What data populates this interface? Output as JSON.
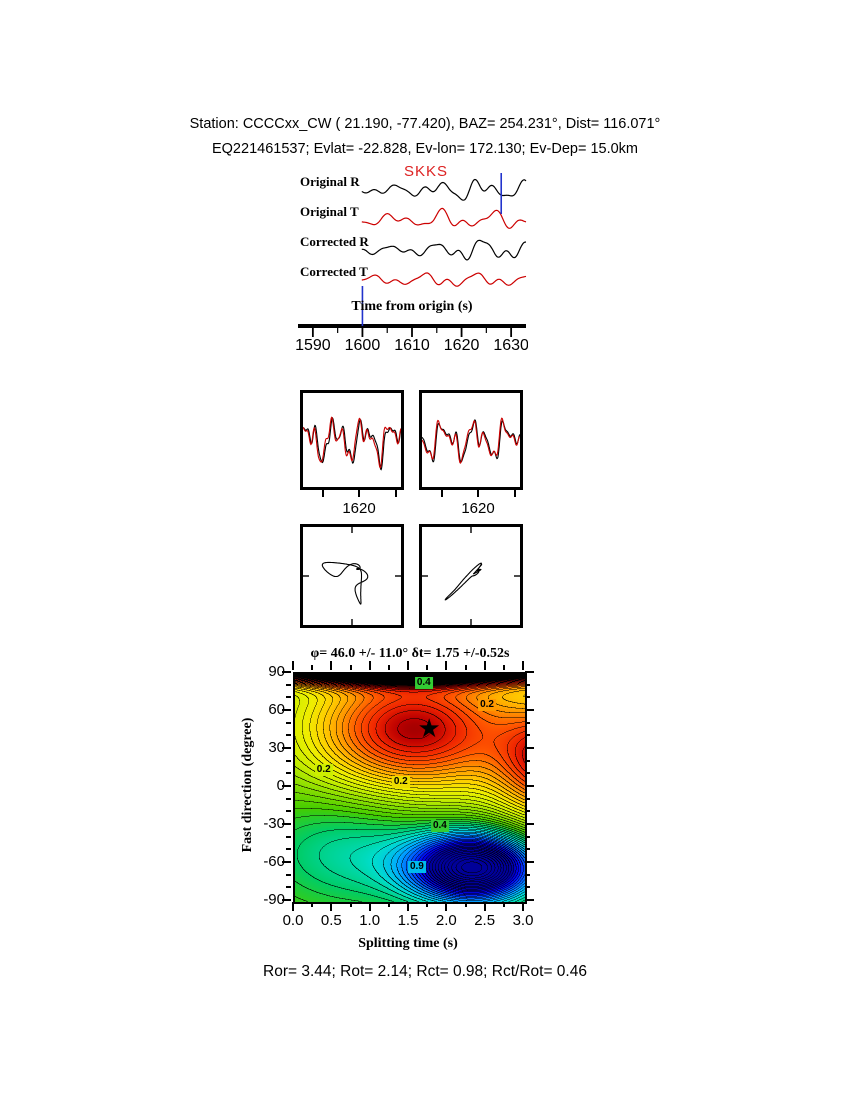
{
  "header": {
    "line1": "Station: CCCCxx_CW (  21.190,  -77.420), BAZ=  254.231°, Dist=  116.071°",
    "line2": "EQ221461537; Evlat= -22.828, Ev-lon= 172.130; Ev-Dep= 15.0km"
  },
  "chart_data": [
    {
      "id": "waveform_panel",
      "type": "line",
      "xlabel": "Time from origin (s)",
      "phase_label": "SKKS",
      "x_range": [
        1587,
        1633
      ],
      "x_ticks": [
        1590,
        1600,
        1610,
        1620,
        1630
      ],
      "x_minor_step": 5,
      "pick_color": "#2233cc",
      "picks": [
        {
          "time": 1628,
          "region": "top"
        },
        {
          "time": 1600,
          "region": "bottom"
        }
      ],
      "traces": [
        {
          "label": "Original R",
          "color": "#000000",
          "components": [
            [
              0.5,
              5.2,
              0.3
            ],
            [
              0.35,
              9.1,
              1.7
            ],
            [
              0.25,
              13.7,
              4.0
            ]
          ],
          "envelope": [
            0.45,
            0.75,
            0.8,
            0.18
          ]
        },
        {
          "label": "Original T",
          "color": "#cc0000",
          "components": [
            [
              0.5,
              4.6,
              2.1
            ],
            [
              0.32,
              8.3,
              0.5
            ],
            [
              0.26,
              12.2,
              3.1
            ]
          ],
          "envelope": [
            0.5,
            0.6,
            0.74,
            0.2
          ]
        },
        {
          "label": "Corrected R",
          "color": "#000000",
          "components": [
            [
              0.55,
              5.0,
              1.2
            ],
            [
              0.3,
              9.7,
              2.8
            ],
            [
              0.22,
              14.3,
              0.9
            ]
          ],
          "envelope": [
            0.45,
            0.8,
            0.82,
            0.16
          ]
        },
        {
          "label": "Corrected T",
          "color": "#cc0000",
          "components": [
            [
              0.45,
              4.4,
              5.0
            ],
            [
              0.3,
              8.9,
              2.2
            ],
            [
              0.2,
              13.1,
              4.4
            ]
          ],
          "envelope": [
            0.42,
            0.5,
            0.7,
            0.22
          ]
        }
      ]
    },
    {
      "id": "fast_slow_panels",
      "type": "line",
      "panels": [
        {
          "x_tick_label": "1620",
          "traces": [
            {
              "color": "#000000",
              "components": [
                [
                  0.5,
                  3.4,
                  0.6
                ],
                [
                  0.34,
                  6.8,
                  2.2
                ],
                [
                  0.22,
                  11.3,
                  4.8
                ],
                [
                  0.12,
                  16.9,
                  1.4
                ]
              ]
            },
            {
              "color": "#cc0000",
              "components": [
                [
                  0.5,
                  3.4,
                  1.0
                ],
                [
                  0.34,
                  6.8,
                  2.7
                ],
                [
                  0.22,
                  11.3,
                  5.3
                ],
                [
                  0.12,
                  16.9,
                  2.0
                ]
              ]
            }
          ]
        },
        {
          "x_tick_label": "1620",
          "traces": [
            {
              "color": "#000000",
              "components": [
                [
                  0.46,
                  3.1,
                  3.3
                ],
                [
                  0.3,
                  6.2,
                  0.8
                ],
                [
                  0.2,
                  10.7,
                  2.9
                ],
                [
                  0.12,
                  15.3,
                  5.5
                ]
              ]
            },
            {
              "color": "#cc0000",
              "components": [
                [
                  0.46,
                  3.1,
                  3.6
                ],
                [
                  0.3,
                  6.2,
                  1.15
                ],
                [
                  0.2,
                  10.7,
                  3.25
                ],
                [
                  0.12,
                  15.3,
                  5.85
                ]
              ]
            }
          ]
        }
      ]
    },
    {
      "id": "particle_motion_panels",
      "type": "scatter",
      "panels": [
        {
          "x_components": [
            [
              0.34,
              1,
              0.2
            ],
            [
              0.2,
              2,
              1.9
            ],
            [
              0.13,
              3,
              4.4
            ],
            [
              0.07,
              5,
              2.8
            ]
          ],
          "y_components": [
            [
              0.3,
              1,
              2.6
            ],
            [
              0.22,
              2,
              0.4
            ],
            [
              0.12,
              3,
              3.4
            ],
            [
              0.06,
              5,
              5.1
            ]
          ]
        },
        {
          "x_components": [
            [
              0.3,
              1,
              0.8
            ],
            [
              0.18,
              2,
              2.9
            ],
            [
              0.1,
              3,
              5.2
            ],
            [
              0.05,
              6,
              1.0
            ]
          ],
          "y_components": [
            [
              0.27,
              1,
              0.95
            ],
            [
              0.16,
              2,
              3.15
            ],
            [
              0.12,
              3,
              5.05
            ],
            [
              0.05,
              6,
              1.3
            ]
          ]
        }
      ]
    },
    {
      "id": "splitting_map",
      "type": "heatmap",
      "title_text": "φ= 46.0 +/- 11.0° δt= 1.75 +/-0.52s",
      "xlabel": "Splitting time (s)",
      "ylabel": "Fast direction (degree)",
      "x_range": [
        0,
        3
      ],
      "y_range": [
        -90,
        90
      ],
      "x_tick_labels": [
        "0.0",
        "0.5",
        "1.0",
        "1.5",
        "2.0",
        "2.5",
        "3.0"
      ],
      "x_minor_step": 0.25,
      "y_ticks": [
        90,
        60,
        30,
        0,
        -30,
        -60,
        -90
      ],
      "y_minor_step": 10,
      "best_fit": {
        "phi": 46.0,
        "phi_err": 11.0,
        "dt": 1.75,
        "dt_err": 0.52
      },
      "star": {
        "dt": 1.75,
        "phi": 46,
        "glyph": "★"
      },
      "contour_interval": 0.05,
      "black_threshold": 1.1,
      "field_blobs": [
        [
          0.98,
          1.55,
          1.35,
          46,
          52
        ],
        [
          1.9,
          1.5,
          2.6,
          95,
          12
        ],
        [
          -1.4,
          2.35,
          0.8,
          -63,
          27
        ],
        [
          -0.35,
          0.8,
          1.4,
          -50,
          50
        ],
        [
          0.85,
          3.35,
          0.7,
          20,
          45
        ]
      ],
      "colormap": [
        [
          -1.0,
          "#000099"
        ],
        [
          -0.85,
          "#0000ee"
        ],
        [
          -0.7,
          "#0055ff"
        ],
        [
          -0.55,
          "#00aaff"
        ],
        [
          -0.4,
          "#00ddcc"
        ],
        [
          -0.25,
          "#00cc66"
        ],
        [
          -0.1,
          "#44cc00"
        ],
        [
          0.05,
          "#88dd00"
        ],
        [
          0.2,
          "#ccee00"
        ],
        [
          0.32,
          "#eeee00"
        ],
        [
          0.45,
          "#ffcc00"
        ],
        [
          0.58,
          "#ff9900"
        ],
        [
          0.72,
          "#ff5500"
        ],
        [
          0.85,
          "#ee2200"
        ],
        [
          0.95,
          "#bb0000"
        ],
        [
          1.05,
          "#660000"
        ],
        [
          1.12,
          "#1a0000"
        ]
      ],
      "contour_labels": [
        {
          "text": "0.4",
          "fx": 0.56,
          "fy": 0.04,
          "bg": "#33cc33"
        },
        {
          "text": "0.2",
          "fx": 0.835,
          "fy": 0.135,
          "bg": "#ff9900"
        },
        {
          "text": "0.2",
          "fx": 0.125,
          "fy": 0.42,
          "bg": "#ccee00"
        },
        {
          "text": "0.2",
          "fx": 0.46,
          "fy": 0.475,
          "bg": "#eedd00"
        },
        {
          "text": "0.4",
          "fx": 0.63,
          "fy": 0.665,
          "bg": "#33cc33"
        },
        {
          "text": "0.9",
          "fx": 0.53,
          "fy": 0.845,
          "bg": "#00bbee"
        }
      ]
    }
  ],
  "footer": {
    "text": "Ror= 3.44; Rot= 2.14; Rct= 0.98; Rct/Rot= 0.46",
    "Ror": 3.44,
    "Rot": 2.14,
    "Rct": 0.98,
    "Rct_over_Rot": 0.46
  }
}
